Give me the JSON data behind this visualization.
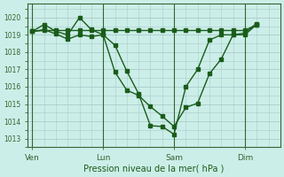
{
  "bg_color": "#cceee8",
  "grid_color": "#aacccc",
  "line_color": "#1a5c1a",
  "xlabel": "Pression niveau de la mer( hPa )",
  "ylim": [
    1012.5,
    1020.8
  ],
  "yticks": [
    1013,
    1014,
    1015,
    1016,
    1017,
    1018,
    1019,
    1020
  ],
  "xtick_labels": [
    "Ven",
    "Lun",
    "Sam",
    "Dim"
  ],
  "xtick_positions": [
    0,
    3,
    6,
    9
  ],
  "vline_positions": [
    0,
    3,
    6,
    9
  ],
  "xlim": [
    -0.2,
    10.5
  ],
  "line1_x": [
    0,
    0.5,
    1.0,
    1.5,
    2.0,
    2.5,
    3.0,
    3.5,
    4.0,
    4.5,
    5.0,
    5.5,
    6.0,
    6.5,
    7.0,
    7.5,
    8.0,
    8.5,
    9.0,
    9.5
  ],
  "line1_y": [
    1019.2,
    1019.25,
    1019.25,
    1019.25,
    1019.25,
    1019.25,
    1019.25,
    1019.25,
    1019.25,
    1019.25,
    1019.25,
    1019.25,
    1019.25,
    1019.25,
    1019.25,
    1019.25,
    1019.25,
    1019.25,
    1019.25,
    1019.6
  ],
  "line2_x": [
    0,
    0.5,
    1.0,
    1.5,
    2.0,
    2.5,
    3.0,
    3.5,
    4.0,
    4.5,
    5.0,
    5.5,
    6.0,
    6.5,
    7.0,
    7.5,
    8.0,
    8.5,
    9.0,
    9.5
  ],
  "line2_y": [
    1019.2,
    1019.6,
    1019.2,
    1019.0,
    1020.0,
    1019.3,
    1019.0,
    1018.4,
    1016.9,
    1015.6,
    1013.75,
    1013.7,
    1013.25,
    1016.0,
    1017.0,
    1018.7,
    1019.0,
    1019.0,
    1019.0,
    1019.6
  ],
  "line3_x": [
    0,
    0.5,
    1.0,
    1.5,
    2.0,
    2.5,
    3.0,
    3.5,
    4.0,
    4.5,
    5.0,
    5.5,
    6.0,
    6.5,
    7.0,
    7.5,
    8.0,
    8.5,
    9.0,
    9.5
  ],
  "line3_y": [
    1019.2,
    1019.3,
    1019.05,
    1018.75,
    1019.0,
    1018.9,
    1019.0,
    1016.85,
    1015.8,
    1015.5,
    1014.85,
    1014.3,
    1013.7,
    1014.8,
    1015.05,
    1016.75,
    1017.6,
    1019.0,
    1019.1,
    1019.65
  ]
}
